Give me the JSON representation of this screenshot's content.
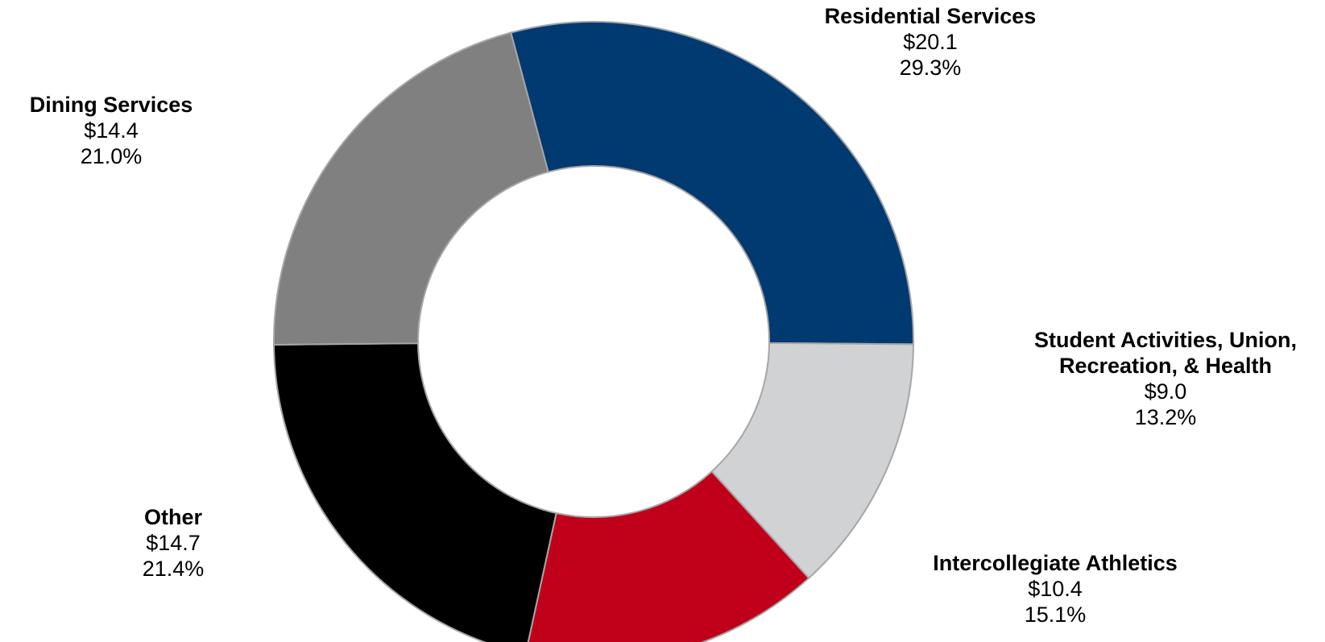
{
  "chart_data": {
    "type": "pie",
    "variant": "donut",
    "start_angle_clockwise_from_top_deg": -15,
    "slices": [
      {
        "name_lines": [
          "Residential Services"
        ],
        "value": 20.1,
        "value_label": "$20.1",
        "percent": 29.3,
        "percent_label": "29.3%",
        "color": "#003a70"
      },
      {
        "name_lines": [
          "Student Activities, Union,",
          "Recreation, & Health"
        ],
        "value": 9.0,
        "value_label": "$9.0",
        "percent": 13.2,
        "percent_label": "13.2%",
        "color": "#d1d2d4"
      },
      {
        "name_lines": [
          "Intercollegiate Athletics"
        ],
        "value": 10.4,
        "value_label": "$10.4",
        "percent": 15.1,
        "percent_label": "15.1%",
        "color": "#c0001a"
      },
      {
        "name_lines": [
          "Other"
        ],
        "value": 14.7,
        "value_label": "$14.7",
        "percent": 21.4,
        "percent_label": "21.4%",
        "color": "#000000"
      },
      {
        "name_lines": [
          "Dining Services"
        ],
        "value": 14.4,
        "value_label": "$14.4",
        "percent": 21.0,
        "percent_label": "21.0%",
        "color": "#808080"
      }
    ],
    "slice_border_color": "#a6a6a6",
    "legend": "none"
  }
}
